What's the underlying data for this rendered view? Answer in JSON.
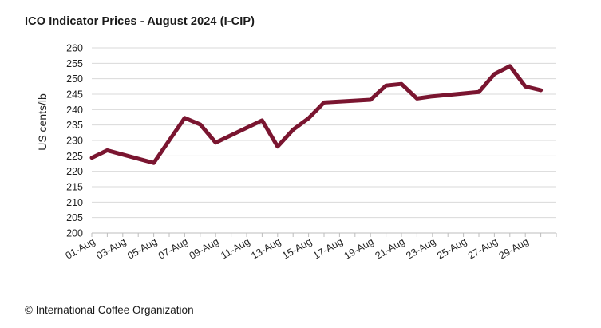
{
  "title": "ICO Indicator Prices - August 2024 (I-CIP)",
  "footer": "© International Coffee Organization",
  "chart_data": {
    "type": "line",
    "title": "ICO Indicator Prices - August 2024 (I-CIP)",
    "xlabel": "",
    "ylabel": "US cents/lb",
    "ylim": [
      200,
      260
    ],
    "yticks": [
      200,
      205,
      210,
      215,
      220,
      225,
      230,
      235,
      240,
      245,
      250,
      255,
      260
    ],
    "xlim_days": [
      1,
      31
    ],
    "xtick_labels": [
      "01-Aug",
      "03-Aug",
      "05-Aug",
      "07-Aug",
      "09-Aug",
      "11-Aug",
      "13-Aug",
      "15-Aug",
      "17-Aug",
      "19-Aug",
      "21-Aug",
      "23-Aug",
      "25-Aug",
      "27-Aug",
      "29-Aug"
    ],
    "grid": "horizontal",
    "legend": "none",
    "series": [
      {
        "color": "#7a1530",
        "x": [
          "01-Aug",
          "02-Aug",
          "05-Aug",
          "06-Aug",
          "07-Aug",
          "08-Aug",
          "09-Aug",
          "12-Aug",
          "13-Aug",
          "14-Aug",
          "15-Aug",
          "16-Aug",
          "19-Aug",
          "20-Aug",
          "21-Aug",
          "22-Aug",
          "23-Aug",
          "26-Aug",
          "27-Aug",
          "28-Aug",
          "29-Aug",
          "30-Aug"
        ],
        "values": [
          224.4,
          226.8,
          222.7,
          230.0,
          237.3,
          235.2,
          229.3,
          236.5,
          228.0,
          233.5,
          237.2,
          242.3,
          243.2,
          247.8,
          248.3,
          243.6,
          244.3,
          245.7,
          251.5,
          254.1,
          247.5,
          246.3
        ]
      }
    ]
  }
}
